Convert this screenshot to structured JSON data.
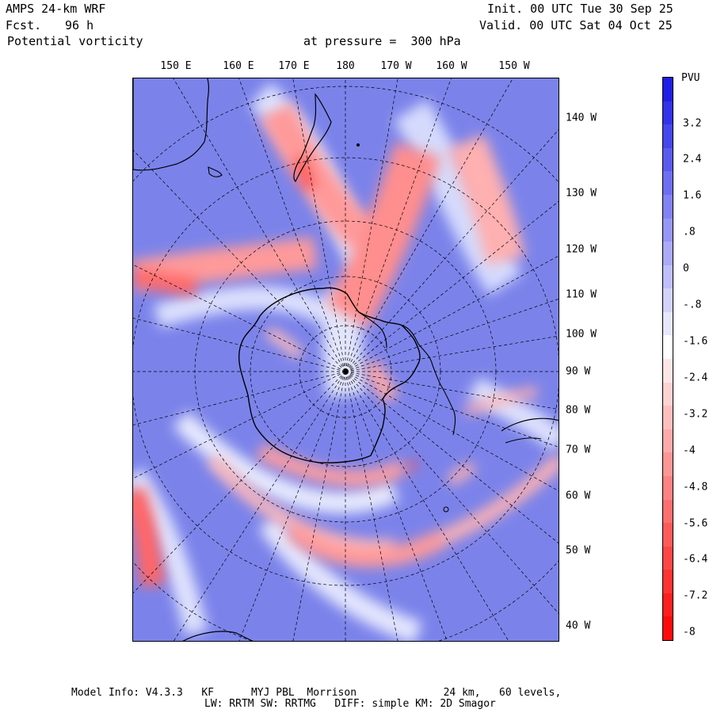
{
  "header": {
    "model": "AMPS 24-km WRF",
    "fcst_label": "Fcst.",
    "fcst_value": "96 h",
    "field": "Potential vorticity",
    "level": "at pressure =  300 hPa",
    "init": "Init. 00 UTC Tue 30 Sep 25",
    "valid": "Valid. 00 UTC Sat 04 Oct 25"
  },
  "map": {
    "top_labels": [
      "150 E",
      "160 E",
      "170 E",
      "180",
      "170 W",
      "160 W",
      "150 W"
    ],
    "right_labels": [
      "140 W",
      "130 W",
      "120 W",
      "110 W",
      "100 W",
      "90 W",
      "80 W",
      "70 W",
      "60 W",
      "50 W",
      "40 W"
    ]
  },
  "colorbar": {
    "unit": "PVU",
    "labels": [
      "3.2",
      "2.4",
      "1.6",
      ".8",
      "0",
      "-.8",
      "-1.6",
      "-2.4",
      "-3.2",
      "-4",
      "-4.8",
      "-5.6",
      "-6.4",
      "-7.2",
      "-8"
    ],
    "colors": [
      "#1e1ee6",
      "#3232ea",
      "#4646ee",
      "#5a5af0",
      "#6e6ef2",
      "#8282f4",
      "#9696f6",
      "#aaaaf8",
      "#bebefa",
      "#d2d2fc",
      "#e6e6fe",
      "#ffffff",
      "#ffe6e6",
      "#ffd2d2",
      "#ffbebe",
      "#ffaaaa",
      "#ff9696",
      "#ff8282",
      "#ff6e6e",
      "#ff5a5a",
      "#ff4646",
      "#ff3232",
      "#ff1e1e",
      "#ff0a0a"
    ]
  },
  "footer": {
    "line1": "Model Info: V4.3.3   KF      MYJ PBL  Morrison              24 km,   60 levels,",
    "line2": "LW: RRTM SW: RRTMG   DIFF: simple KM: 2D Smagor"
  }
}
